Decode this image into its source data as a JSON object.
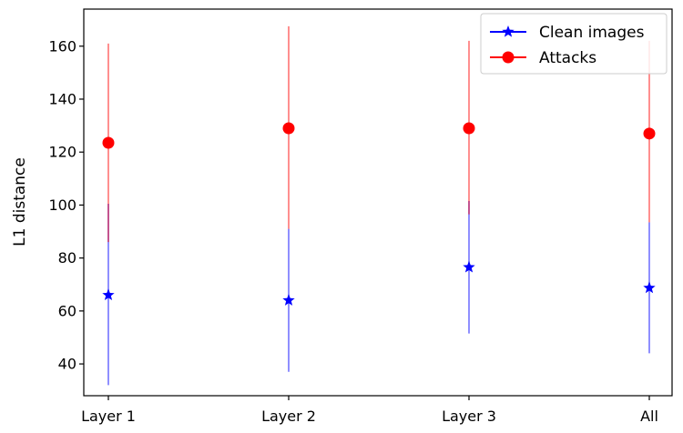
{
  "chart_data": {
    "type": "scatter",
    "title": "",
    "xlabel": "",
    "ylabel": "L1 distance",
    "categories": [
      "Layer 1",
      "Layer 2",
      "Layer 3",
      "All"
    ],
    "ylim": [
      28,
      174
    ],
    "yticks": [
      40,
      60,
      80,
      100,
      120,
      140,
      160
    ],
    "grid": false,
    "legend_position": "top-right",
    "series": [
      {
        "name": "Clean images",
        "marker": "star",
        "color": "#0000ff",
        "values": [
          66,
          64,
          76.5,
          68.7
        ],
        "error_low": [
          32,
          37,
          51.5,
          44
        ],
        "error_high": [
          100.5,
          91,
          101.5,
          93.5
        ]
      },
      {
        "name": "Attacks",
        "marker": "circle",
        "color": "#ff0000",
        "values": [
          123.5,
          129,
          129,
          127
        ],
        "error_low": [
          86,
          91,
          96.5,
          93.5
        ],
        "error_high": [
          161,
          167.5,
          162,
          162
        ]
      }
    ]
  }
}
